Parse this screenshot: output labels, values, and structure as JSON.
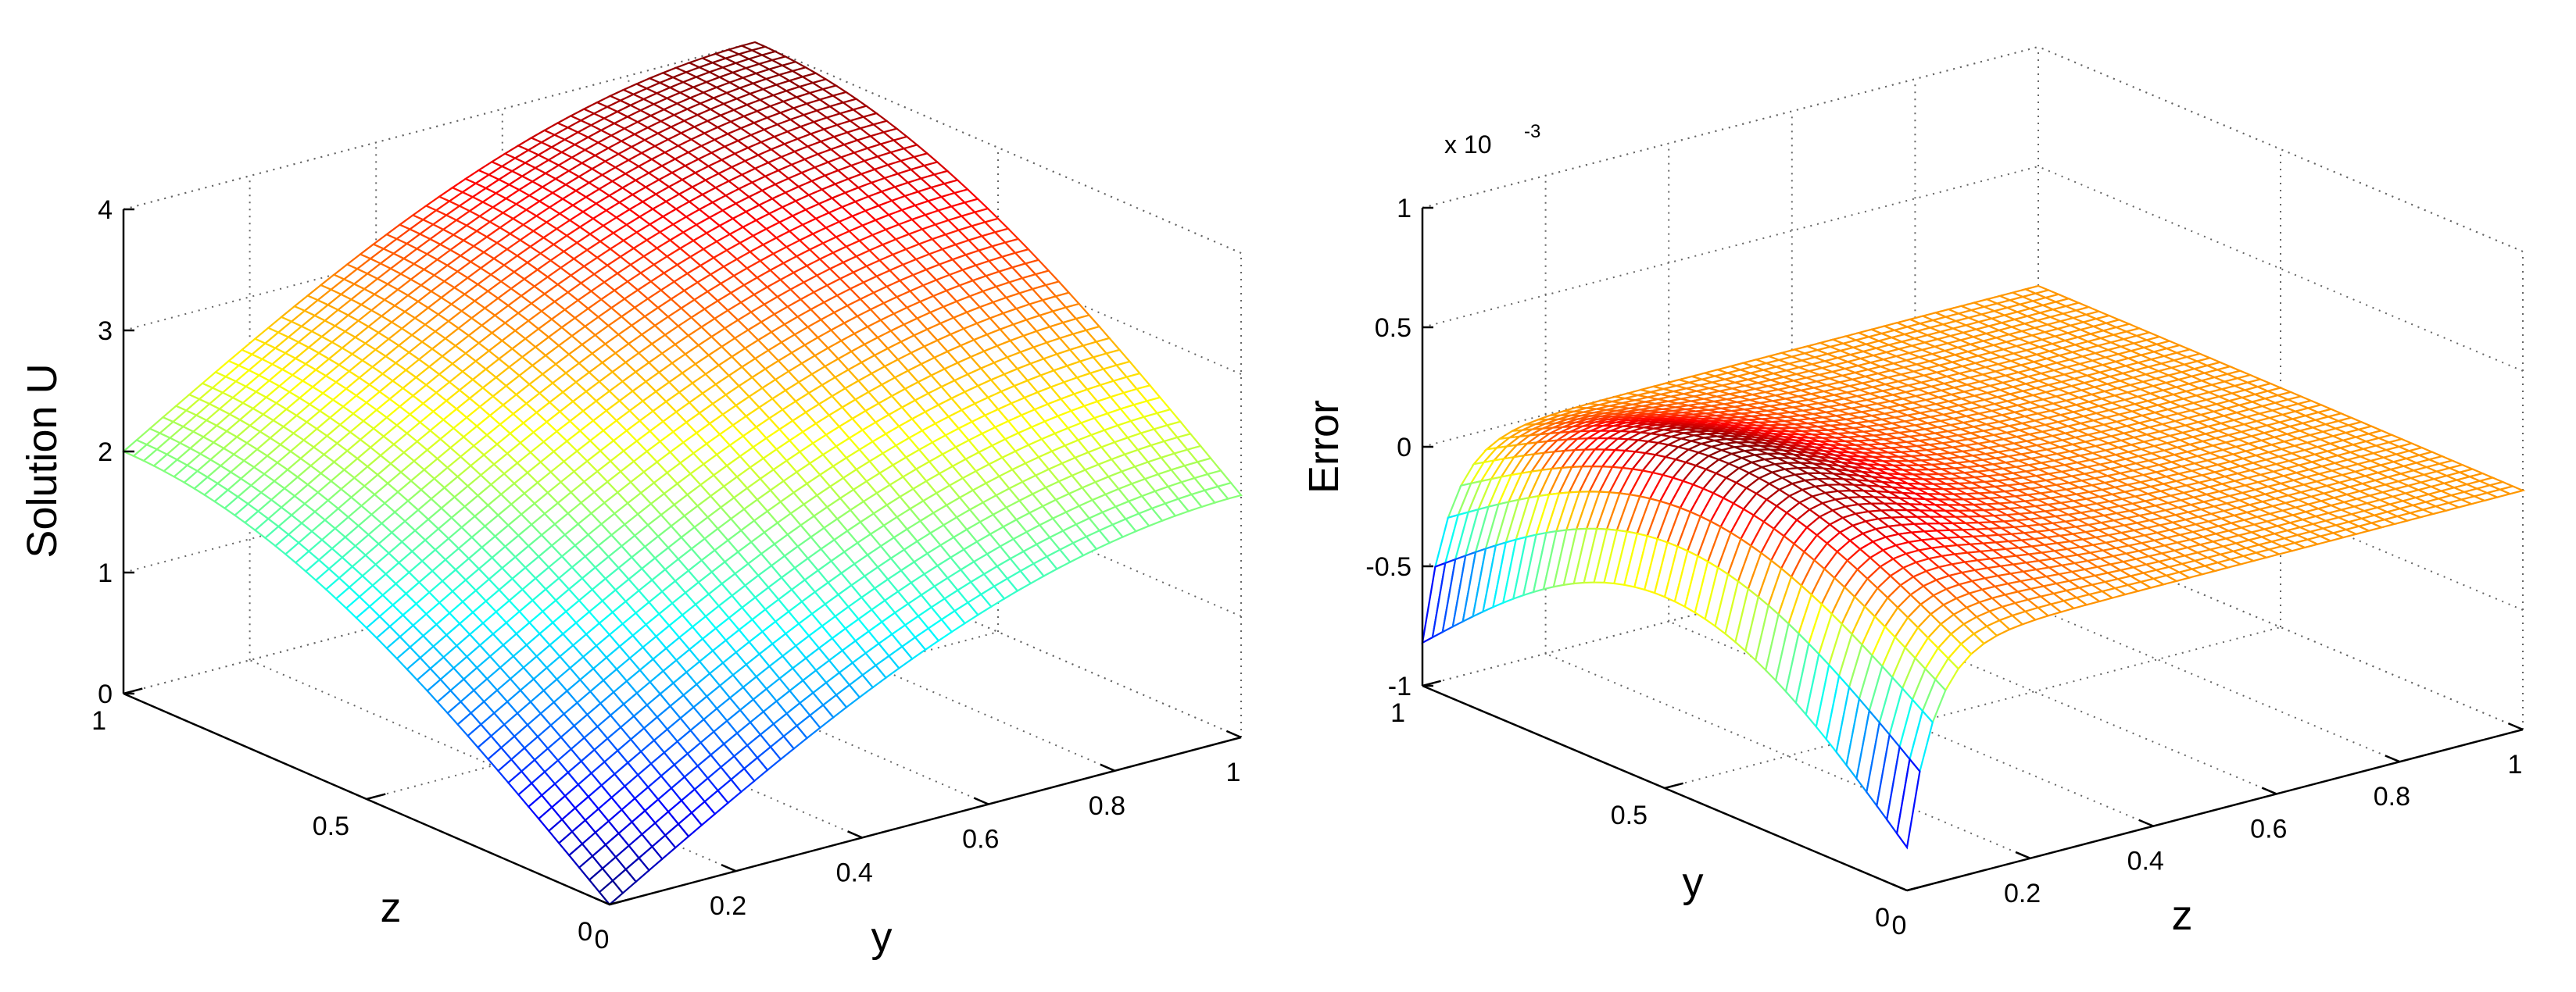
{
  "chart_data": [
    {
      "type": "surface",
      "colormap": "jet",
      "grid": true,
      "zlabel": "Solution U",
      "x_axis": {
        "label": "y",
        "ticks": [
          "0",
          "0.2",
          "0.4",
          "0.6",
          "0.8",
          "1"
        ],
        "range": [
          0,
          1
        ]
      },
      "y_axis": {
        "label": "z",
        "ticks": [
          "0",
          "0.5",
          "1"
        ],
        "range": [
          0,
          1
        ]
      },
      "z_axis": {
        "ticks": [
          "0",
          "1",
          "2",
          "3",
          "4"
        ],
        "range": [
          0,
          4
        ]
      },
      "sample_values": [
        {
          "y": 0,
          "z": 0,
          "U": 0
        },
        {
          "y": 0,
          "z": 1,
          "U": 2
        },
        {
          "y": 1,
          "z": 0,
          "U": 2
        },
        {
          "y": 1,
          "z": 1,
          "U": 4
        }
      ]
    },
    {
      "type": "surface",
      "colormap": "jet",
      "grid": true,
      "zlabel": "Error",
      "z_multiplier": "x 10",
      "z_multiplier_exponent": "-3",
      "x_axis": {
        "label": "z",
        "ticks": [
          "0",
          "0.2",
          "0.4",
          "0.6",
          "0.8",
          "1"
        ],
        "range": [
          0,
          1
        ]
      },
      "y_axis": {
        "label": "y",
        "ticks": [
          "0",
          "0.5",
          "1"
        ],
        "range": [
          0,
          1
        ]
      },
      "z_axis": {
        "ticks": [
          "-1",
          "-0.5",
          "0",
          "0.5",
          "1"
        ],
        "range": [
          -1,
          1
        ]
      },
      "sample_values": [
        {
          "z": 0,
          "y": 0,
          "Error": -0.82
        },
        {
          "z": 0,
          "y": 0.5,
          "Error": -0.2
        },
        {
          "z": 0.15,
          "y": 0.5,
          "Error": 0.3
        },
        {
          "z": 1,
          "y": 0.5,
          "Error": 0
        }
      ]
    }
  ]
}
